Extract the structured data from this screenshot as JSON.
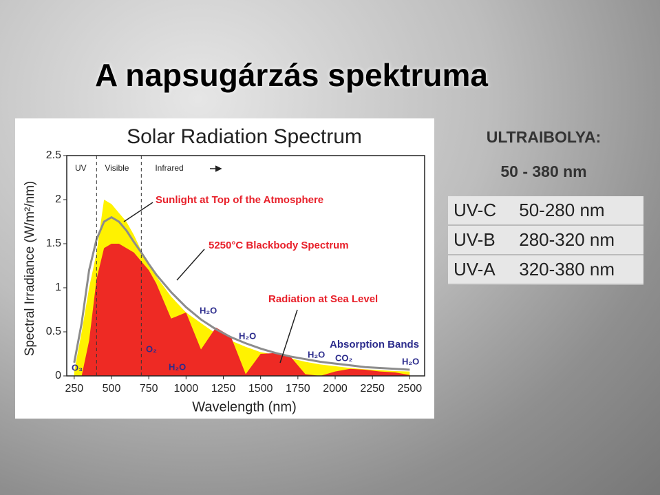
{
  "title": "A napsugárzás spektruma",
  "chart_data": {
    "type": "area",
    "title": "Solar Radiation Spectrum",
    "x_label": "Wavelength (nm)",
    "y_label": "Spectral Irradiance (W/m²/nm)",
    "xlim": [
      200,
      2600
    ],
    "ylim": [
      0,
      2.5
    ],
    "xticks": [
      250,
      500,
      750,
      1000,
      1250,
      1500,
      1750,
      2000,
      2250,
      2500
    ],
    "yticks": [
      0,
      0.5,
      1,
      1.5,
      2,
      2.5
    ],
    "regions": [
      "UV",
      "Visible",
      "Infrared"
    ],
    "dividers": [
      400,
      700
    ],
    "annotations": [
      "Sunlight at Top of the Atmosphere",
      "5250°C Blackbody Spectrum",
      "Radiation at Sea Level",
      "Absorption Bands"
    ],
    "absorbers": [
      "O₃",
      "O₂",
      "H₂O",
      "H₂O",
      "H₂O",
      "H₂O",
      "CO₂",
      "H₂O"
    ],
    "x": [
      250,
      300,
      350,
      400,
      450,
      500,
      550,
      600,
      650,
      700,
      750,
      800,
      900,
      1000,
      1100,
      1200,
      1300,
      1400,
      1500,
      1600,
      1700,
      1800,
      1900,
      2000,
      2100,
      2200,
      2300,
      2400,
      2500
    ],
    "series": [
      {
        "name": "Sunlight at Top of the Atmosphere",
        "color": "#fff200",
        "fill": true,
        "values": [
          0.05,
          0.5,
          1.0,
          1.4,
          2.0,
          1.95,
          1.85,
          1.75,
          1.6,
          1.42,
          1.28,
          1.13,
          0.9,
          0.72,
          0.6,
          0.48,
          0.4,
          0.33,
          0.27,
          0.24,
          0.2,
          0.16,
          0.13,
          0.11,
          0.09,
          0.075,
          0.065,
          0.055,
          0.05
        ]
      },
      {
        "name": "Radiation at Sea Level",
        "color": "#ee2a24",
        "fill": true,
        "values": [
          0,
          0,
          0.4,
          1.1,
          1.45,
          1.5,
          1.5,
          1.45,
          1.4,
          1.3,
          1.2,
          1.05,
          0.65,
          0.72,
          0.3,
          0.55,
          0.45,
          0.02,
          0.25,
          0.26,
          0.22,
          0.02,
          0,
          0.05,
          0.08,
          0.07,
          0.05,
          0.04,
          0.01
        ]
      },
      {
        "name": "5250°C Blackbody Spectrum",
        "color": "#8c8c8c",
        "fill": false,
        "values": [
          0.15,
          0.6,
          1.2,
          1.55,
          1.75,
          1.8,
          1.75,
          1.65,
          1.52,
          1.4,
          1.27,
          1.15,
          0.95,
          0.78,
          0.64,
          0.53,
          0.44,
          0.37,
          0.31,
          0.26,
          0.22,
          0.19,
          0.16,
          0.14,
          0.12,
          0.1,
          0.09,
          0.08,
          0.07
        ]
      }
    ]
  },
  "panel": {
    "heading": "ULTRAIBOLYA:",
    "range": "50 - 380 nm",
    "rows": [
      [
        "UV-C",
        "50-280 nm"
      ],
      [
        "UV-B",
        "280-320 nm"
      ],
      [
        "UV-A",
        "320-380 nm"
      ]
    ]
  }
}
